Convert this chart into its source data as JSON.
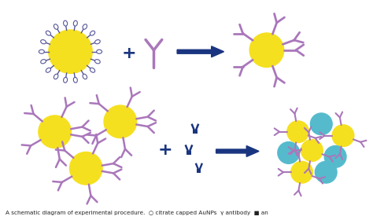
{
  "background_color": "#ffffff",
  "yellow_color": "#f5e020",
  "antibody_color": "#aa77bb",
  "antibody_stripe": "#cc99cc",
  "antigen_color": "#1a3580",
  "teal_color": "#55bbcc",
  "arrow_color": "#1a3580",
  "citrate_line_color": "#555599",
  "citrate_oval_color": "#aaaacc",
  "caption": "A schematic diagram of experimental procedure.  ○ citrate capped AuNPs  γ antibody  ■ an"
}
